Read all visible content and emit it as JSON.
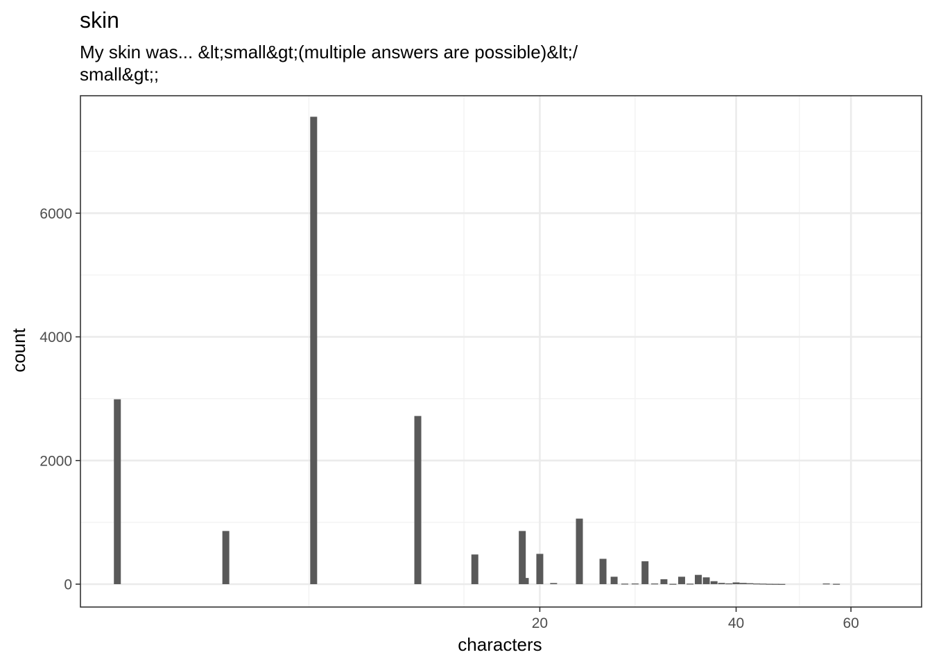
{
  "chart_data": {
    "type": "bar",
    "title": "skin",
    "subtitle_lines": [
      "My skin was... &lt;small&gt;(multiple answers are possible)&lt;/",
      "small&gt;;"
    ],
    "xlabel": "characters",
    "ylabel": "count",
    "x_scale": "log10",
    "xlim": [
      3.95,
      77
    ],
    "ylim": [
      -370,
      7900
    ],
    "x_major_ticks": [
      20,
      40,
      60
    ],
    "x_minor_ticks": [
      8.85,
      15.3,
      28,
      50
    ],
    "y_major_ticks": [
      0,
      2000,
      4000,
      6000
    ],
    "y_minor_ticks": [
      1000,
      3000,
      5000,
      7000
    ],
    "grid": true,
    "x": [
      4.5,
      6.6,
      9,
      13,
      15.9,
      18.8,
      19,
      20,
      21,
      23,
      25,
      26,
      27,
      28,
      29,
      30,
      31,
      32,
      33,
      34,
      35,
      36,
      37,
      38,
      39,
      40,
      41,
      42,
      43,
      44,
      45,
      46,
      47,
      55,
      57
    ],
    "values": [
      2990,
      860,
      7560,
      2720,
      480,
      860,
      100,
      490,
      18,
      1060,
      410,
      120,
      8,
      10,
      370,
      10,
      80,
      5,
      120,
      8,
      150,
      110,
      48,
      20,
      12,
      28,
      20,
      15,
      10,
      8,
      5,
      4,
      3,
      10,
      5
    ]
  },
  "colors": {
    "bar": "#595959",
    "panel_border": "#333333",
    "grid_major": "#ebebeb",
    "grid_minor": "#f2f2f2"
  }
}
